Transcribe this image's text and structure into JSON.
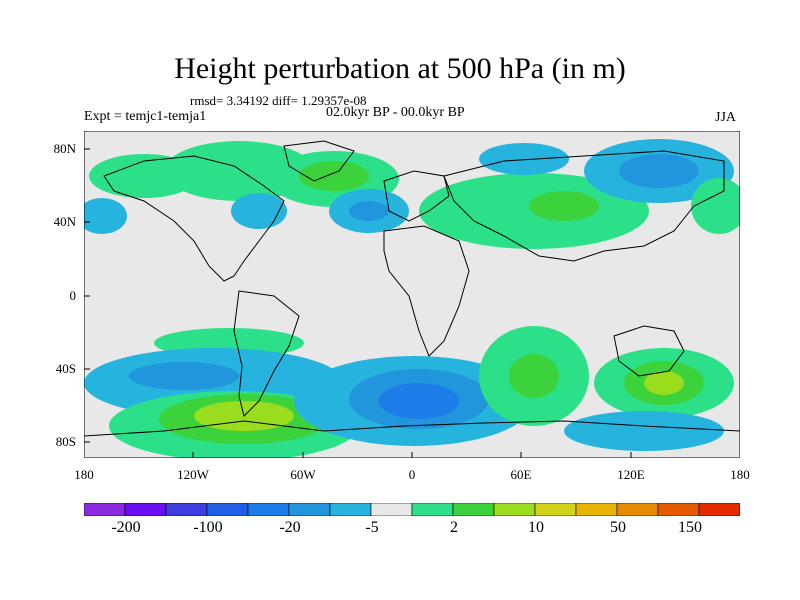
{
  "title": "Height perturbation at 500 hPa (in m)",
  "stats": "rmsd= 3.34192 diff= 1.29357e-08",
  "left_string": "Expt = temjc1-temja1",
  "center_string": "02.0kyr BP - 00.0kyr BP",
  "right_string": "JJA",
  "y_ticks": [
    "80N",
    "40N",
    "0",
    "40S",
    "80S"
  ],
  "x_ticks": [
    "180",
    "120W",
    "60W",
    "0",
    "60E",
    "120E",
    "180"
  ],
  "colorbar": {
    "colors": [
      "#8a2be2",
      "#6a0ff0",
      "#3d3de0",
      "#1f5fe6",
      "#1e7ce8",
      "#2196dd",
      "#26b3dd",
      "#e8e8e8",
      "#2ce08a",
      "#3cd23c",
      "#9adc1e",
      "#d2d218",
      "#e6b400",
      "#e68a00",
      "#e65a00",
      "#e62a00"
    ],
    "labels": [
      "-200",
      "-100",
      "-20",
      "-5",
      "2",
      "10",
      "50",
      "150"
    ]
  },
  "colors": {
    "neutral": "#e8e8e8",
    "light_green": "#2ce08a",
    "green": "#3cd23c",
    "yellow_green": "#9adc1e",
    "light_blue": "#26b3dd",
    "mid_blue": "#2196dd",
    "blue": "#1e7ce8",
    "deep_blue": "#1f5fe6"
  }
}
